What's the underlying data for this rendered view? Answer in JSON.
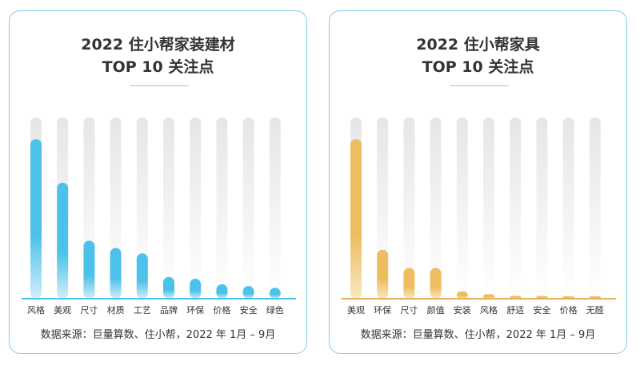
{
  "chart_data": [
    {
      "type": "bar",
      "title_line1": "2022 住小帮家装建材",
      "title_line2": "TOP 10 关注点",
      "categories": [
        "风格",
        "美观",
        "尺寸",
        "材质",
        "工艺",
        "品牌",
        "环保",
        "价格",
        "安全",
        "绿色"
      ],
      "values": [
        88,
        64,
        32,
        28,
        25,
        12,
        11,
        8,
        7,
        6
      ],
      "ylim": [
        0,
        100
      ],
      "source": "数据来源：巨量算数、住小帮，2022 年 1月 – 9月",
      "colors": {
        "bar": "#4cc1ea",
        "bar_fade": "#d2eef9",
        "track": "#e6e6e6",
        "baseline": "#4cc1ea"
      }
    },
    {
      "type": "bar",
      "title_line1": "2022 住小帮家具",
      "title_line2": "TOP 10 关注点",
      "categories": [
        "美观",
        "环保",
        "尺寸",
        "颜值",
        "安装",
        "风格",
        "舒适",
        "安全",
        "价格",
        "无醛"
      ],
      "values": [
        88,
        27,
        17,
        17,
        4,
        2.5,
        1.5,
        1.5,
        1.2,
        1.2
      ],
      "ylim": [
        0,
        100
      ],
      "source": "数据来源：巨量算数、住小帮，2022 年 1月 – 9月",
      "colors": {
        "bar": "#edbd5f",
        "bar_fade": "#f8e8c3",
        "track": "#e6e6e6",
        "baseline": "#e2b057"
      }
    }
  ]
}
